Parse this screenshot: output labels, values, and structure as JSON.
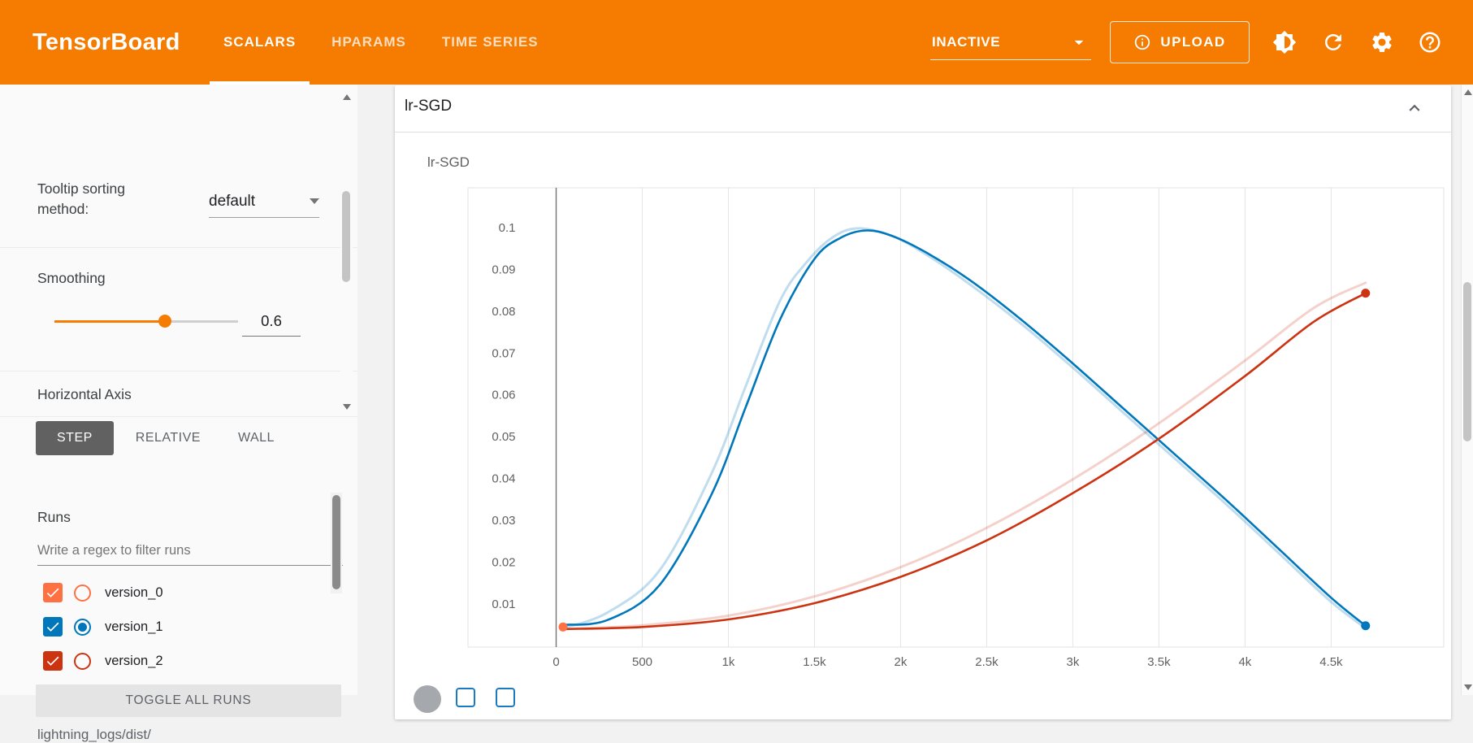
{
  "header": {
    "logo": "TensorBoard",
    "tabs": [
      {
        "label": "SCALARS",
        "active": true
      },
      {
        "label": "HPARAMS",
        "active": false
      },
      {
        "label": "TIME SERIES",
        "active": false
      }
    ],
    "status_dropdown": {
      "value": "INACTIVE"
    },
    "upload_button": "UPLOAD",
    "icon_buttons": [
      "brightness-icon",
      "refresh-icon",
      "settings-icon",
      "help-icon"
    ],
    "bar_color": "#f57c00"
  },
  "sidebar": {
    "tooltip_sorting_label": "Tooltip sorting method:",
    "tooltip_sorting_value": "default",
    "smoothing_label": "Smoothing",
    "smoothing_value": "0.6",
    "horizontal_axis_label": "Horizontal Axis",
    "axis_options": [
      {
        "label": "STEP",
        "active": true
      },
      {
        "label": "RELATIVE",
        "active": false
      },
      {
        "label": "WALL",
        "active": false
      }
    ],
    "runs_title": "Runs",
    "filter_placeholder": "Write a regex to filter runs",
    "runs": [
      {
        "name": "version_0",
        "color": "#ff7043",
        "checked": true,
        "selected": false
      },
      {
        "name": "version_1",
        "color": "#0077bb",
        "checked": true,
        "selected": true
      },
      {
        "name": "version_2",
        "color": "#cc3311",
        "checked": true,
        "selected": false
      }
    ],
    "toggle_all_label": "TOGGLE ALL RUNS",
    "log_dir": "lightning_logs/dist/"
  },
  "main": {
    "card_title": "lr-SGD"
  },
  "chart_data": {
    "type": "line",
    "title": "lr-SGD",
    "xlim": [
      -512,
      5154
    ],
    "ylim": [
      -0.0003,
      0.1095
    ],
    "grid": "vertical",
    "zero_line_x": 0,
    "legend": "none",
    "x_ticks": [
      {
        "value": 0,
        "label": "0"
      },
      {
        "value": 500,
        "label": "500"
      },
      {
        "value": 1000,
        "label": "1k"
      },
      {
        "value": 1500,
        "label": "1.5k"
      },
      {
        "value": 2000,
        "label": "2k"
      },
      {
        "value": 2500,
        "label": "2.5k"
      },
      {
        "value": 3000,
        "label": "3k"
      },
      {
        "value": 3500,
        "label": "3.5k"
      },
      {
        "value": 4000,
        "label": "4k"
      },
      {
        "value": 4500,
        "label": "4.5k"
      }
    ],
    "y_ticks": [
      {
        "value": 0.01,
        "label": "0.01"
      },
      {
        "value": 0.02,
        "label": "0.02"
      },
      {
        "value": 0.03,
        "label": "0.03"
      },
      {
        "value": 0.04,
        "label": "0.04"
      },
      {
        "value": 0.05,
        "label": "0.05"
      },
      {
        "value": 0.06,
        "label": "0.06"
      },
      {
        "value": 0.07,
        "label": "0.07"
      },
      {
        "value": 0.08,
        "label": "0.08"
      },
      {
        "value": 0.09,
        "label": "0.09"
      },
      {
        "value": 0.1,
        "label": "0.1"
      }
    ],
    "series": [
      {
        "name": "version_1-original",
        "run": "version_1",
        "color": "#0077bb",
        "opacity": 0.25,
        "width": 3,
        "points": [
          [
            40,
            0.0042
          ],
          [
            300,
            0.008
          ],
          [
            600,
            0.018
          ],
          [
            900,
            0.041
          ],
          [
            1100,
            0.062
          ],
          [
            1300,
            0.0825
          ],
          [
            1450,
            0.0915
          ],
          [
            1600,
            0.0975
          ],
          [
            1750,
            0.0998
          ],
          [
            1950,
            0.098
          ],
          [
            2150,
            0.0935
          ],
          [
            2400,
            0.0865
          ],
          [
            2700,
            0.077
          ],
          [
            3000,
            0.0665
          ],
          [
            3300,
            0.0555
          ],
          [
            3600,
            0.0445
          ],
          [
            3900,
            0.0335
          ],
          [
            4200,
            0.022
          ],
          [
            4500,
            0.0105
          ],
          [
            4700,
            0.0042
          ]
        ]
      },
      {
        "name": "version_2-original",
        "run": "version_2",
        "color": "#cc3311",
        "opacity": 0.22,
        "width": 3,
        "points": [
          [
            40,
            0.004
          ],
          [
            500,
            0.0049
          ],
          [
            1000,
            0.0072
          ],
          [
            1500,
            0.0118
          ],
          [
            2000,
            0.0188
          ],
          [
            2500,
            0.0282
          ],
          [
            3000,
            0.0398
          ],
          [
            3500,
            0.0532
          ],
          [
            4000,
            0.0682
          ],
          [
            4400,
            0.0808
          ],
          [
            4700,
            0.0868
          ]
        ]
      },
      {
        "name": "version_1-smoothed",
        "run": "version_1",
        "color": "#0077bb",
        "opacity": 1,
        "width": 2.6,
        "points": [
          [
            40,
            0.005
          ],
          [
            300,
            0.0062
          ],
          [
            600,
            0.0145
          ],
          [
            900,
            0.036
          ],
          [
            1100,
            0.057
          ],
          [
            1300,
            0.078
          ],
          [
            1500,
            0.0925
          ],
          [
            1650,
            0.0975
          ],
          [
            1800,
            0.0993
          ],
          [
            1950,
            0.098
          ],
          [
            2150,
            0.094
          ],
          [
            2400,
            0.0875
          ],
          [
            2700,
            0.078
          ],
          [
            3000,
            0.0675
          ],
          [
            3300,
            0.0565
          ],
          [
            3600,
            0.0455
          ],
          [
            3900,
            0.0345
          ],
          [
            4200,
            0.023
          ],
          [
            4500,
            0.0115
          ],
          [
            4700,
            0.0048
          ]
        ]
      },
      {
        "name": "version_2-smoothed",
        "run": "version_2",
        "color": "#cc3311",
        "opacity": 1,
        "width": 2.6,
        "points": [
          [
            40,
            0.004
          ],
          [
            500,
            0.0045
          ],
          [
            1000,
            0.0063
          ],
          [
            1500,
            0.0102
          ],
          [
            2000,
            0.0165
          ],
          [
            2500,
            0.0252
          ],
          [
            3000,
            0.0365
          ],
          [
            3500,
            0.0495
          ],
          [
            4000,
            0.0645
          ],
          [
            4400,
            0.0775
          ],
          [
            4700,
            0.0843
          ]
        ]
      }
    ],
    "markers": [
      {
        "run": "version_0",
        "x": 40,
        "y": 0.0045,
        "color": "#ff7043"
      },
      {
        "run": "version_1",
        "x": 4700,
        "y": 0.0048,
        "color": "#0077bb"
      },
      {
        "run": "version_2",
        "x": 4700,
        "y": 0.0843,
        "color": "#cc3311"
      }
    ]
  }
}
